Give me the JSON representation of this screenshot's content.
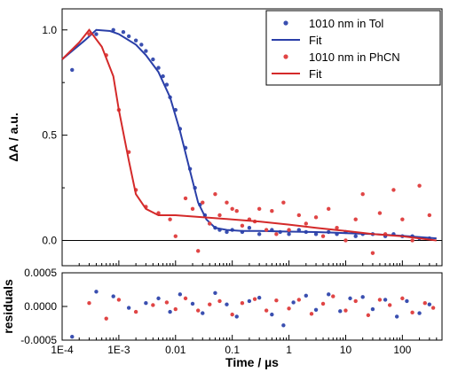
{
  "chart_data": {
    "type": "scatter",
    "x_scale": "log",
    "x_ticks": [
      0.0001,
      0.001,
      0.01,
      0.1,
      1,
      10,
      100
    ],
    "x_tick_labels": [
      "1E-4",
      "1E-3",
      "0.01",
      "0.1",
      "1",
      "10",
      "100"
    ],
    "xlabel": "Time / µs",
    "xlim": [
      0.0001,
      500
    ],
    "main": {
      "ylabel": "ΔA / a.u.",
      "ylim": [
        -0.12,
        1.1
      ],
      "y_ticks": [
        0.0,
        0.5,
        1.0
      ],
      "y_tick_labels": [
        "0.0",
        "0.5",
        "1.0"
      ],
      "zero_line": true,
      "legend_position": "top-right",
      "series": [
        {
          "name": "1010 nm in Tol",
          "kind": "points",
          "color": "#3a4fb0",
          "x": [
            0.00015,
            0.0004,
            0.0008,
            0.0012,
            0.0015,
            0.002,
            0.0025,
            0.003,
            0.004,
            0.005,
            0.006,
            0.007,
            0.008,
            0.01,
            0.012,
            0.015,
            0.018,
            0.022,
            0.027,
            0.033,
            0.04,
            0.05,
            0.06,
            0.08,
            0.1,
            0.15,
            0.2,
            0.3,
            0.5,
            0.7,
            1,
            1.5,
            2,
            3,
            5,
            7,
            10,
            15,
            20,
            30,
            50,
            70,
            100,
            150,
            200,
            300
          ],
          "y": [
            0.81,
            0.98,
            1.0,
            0.99,
            0.97,
            0.95,
            0.93,
            0.9,
            0.86,
            0.82,
            0.78,
            0.74,
            0.68,
            0.62,
            0.53,
            0.44,
            0.34,
            0.25,
            0.17,
            0.12,
            0.08,
            0.06,
            0.05,
            0.04,
            0.05,
            0.04,
            0.06,
            0.03,
            0.05,
            0.04,
            0.03,
            0.05,
            0.04,
            0.03,
            0.04,
            0.03,
            0.04,
            0.02,
            0.03,
            0.03,
            0.02,
            0.03,
            0.02,
            0.02,
            0.01,
            0.01
          ]
        },
        {
          "name": "Fit",
          "kind": "line",
          "color": "#2a3fa8",
          "x": [
            0.0001,
            0.00025,
            0.0004,
            0.0007,
            0.001,
            0.002,
            0.003,
            0.005,
            0.008,
            0.012,
            0.018,
            0.025,
            0.035,
            0.05,
            0.08,
            0.15,
            0.3,
            1,
            3,
            10,
            30,
            100,
            400
          ],
          "y": [
            0.86,
            0.95,
            1.0,
            0.995,
            0.98,
            0.93,
            0.88,
            0.8,
            0.68,
            0.52,
            0.33,
            0.18,
            0.1,
            0.06,
            0.05,
            0.045,
            0.045,
            0.042,
            0.04,
            0.035,
            0.03,
            0.022,
            0.01
          ]
        },
        {
          "name": "1010 nm in PhCN",
          "kind": "points",
          "color": "#e04545",
          "x": [
            0.0003,
            0.0006,
            0.001,
            0.0015,
            0.002,
            0.003,
            0.005,
            0.008,
            0.01,
            0.015,
            0.02,
            0.025,
            0.03,
            0.04,
            0.05,
            0.06,
            0.08,
            0.1,
            0.12,
            0.15,
            0.2,
            0.25,
            0.3,
            0.4,
            0.5,
            0.6,
            0.8,
            1,
            1.5,
            2,
            3,
            4,
            5,
            7,
            10,
            15,
            20,
            30,
            40,
            50,
            70,
            100,
            150,
            200,
            300
          ],
          "y": [
            0.98,
            0.88,
            0.62,
            0.42,
            0.24,
            0.16,
            0.13,
            0.1,
            0.02,
            0.2,
            0.15,
            -0.05,
            0.18,
            0.08,
            0.22,
            0.12,
            0.18,
            0.15,
            0.14,
            0.07,
            0.1,
            0.09,
            0.15,
            0.05,
            0.14,
            0.03,
            0.18,
            0.05,
            0.12,
            0.08,
            0.11,
            0.02,
            0.15,
            0.06,
            0.0,
            0.1,
            0.22,
            -0.06,
            0.13,
            0.03,
            0.24,
            0.1,
            0.0,
            0.26,
            0.12
          ]
        },
        {
          "name": "Fit",
          "kind": "line",
          "color": "#d42a2a",
          "x": [
            0.0001,
            0.0002,
            0.0003,
            0.0005,
            0.0008,
            0.001,
            0.0015,
            0.002,
            0.003,
            0.005,
            0.01,
            0.03,
            0.1,
            0.3,
            1,
            3,
            10,
            30,
            100,
            400
          ],
          "y": [
            0.86,
            0.94,
            1.0,
            0.92,
            0.78,
            0.62,
            0.38,
            0.22,
            0.15,
            0.12,
            0.12,
            0.11,
            0.1,
            0.09,
            0.075,
            0.06,
            0.045,
            0.03,
            0.02,
            0.0
          ]
        }
      ]
    },
    "residuals": {
      "ylabel": "residuals",
      "ylim": [
        -0.0005,
        0.0005
      ],
      "y_ticks": [
        -0.0005,
        0.0,
        0.0005
      ],
      "y_tick_labels": [
        "-0.0005",
        "0.0000",
        "0.0005"
      ],
      "series": [
        {
          "name": "1010 nm in Tol",
          "color": "#3a4fb0",
          "x": [
            0.00015,
            0.0004,
            0.0008,
            0.0015,
            0.003,
            0.005,
            0.008,
            0.012,
            0.02,
            0.03,
            0.05,
            0.08,
            0.12,
            0.2,
            0.3,
            0.5,
            0.8,
            1.2,
            2,
            3,
            5,
            8,
            12,
            20,
            30,
            50,
            80,
            120,
            200,
            300
          ],
          "y": [
            -0.00045,
            0.00022,
            0.00015,
            -2e-05,
            5e-05,
            0.00012,
            -8e-05,
            0.00018,
            4e-05,
            -0.0001,
            0.0002,
            3e-05,
            -0.00015,
            8e-05,
            0.00013,
            -0.00012,
            -0.00028,
            6e-05,
            0.00016,
            -5e-05,
            0.00018,
            -7e-05,
            0.00012,
            0.00014,
            -4e-05,
            0.0001,
            -0.00015,
            8e-05,
            -0.0001,
            3e-05
          ]
        },
        {
          "name": "1010 nm in PhCN",
          "color": "#e04545",
          "x": [
            0.0003,
            0.0006,
            0.001,
            0.002,
            0.004,
            0.007,
            0.01,
            0.015,
            0.025,
            0.04,
            0.06,
            0.1,
            0.15,
            0.25,
            0.4,
            0.6,
            1,
            1.5,
            2.5,
            4,
            6,
            10,
            15,
            25,
            40,
            60,
            100,
            150,
            250,
            350
          ],
          "y": [
            5e-05,
            -0.00018,
            0.0001,
            -8e-05,
            2e-05,
            6e-05,
            -4e-05,
            0.00012,
            -6e-05,
            3e-05,
            8e-05,
            -0.00012,
            5e-05,
            0.00011,
            -6e-05,
            9e-05,
            -3e-05,
            0.0001,
            -0.00011,
            4e-05,
            0.00015,
            -6e-05,
            8e-05,
            -0.00013,
            0.0001,
            2e-05,
            0.00012,
            -9e-05,
            5e-05,
            -2e-05
          ]
        }
      ]
    }
  }
}
